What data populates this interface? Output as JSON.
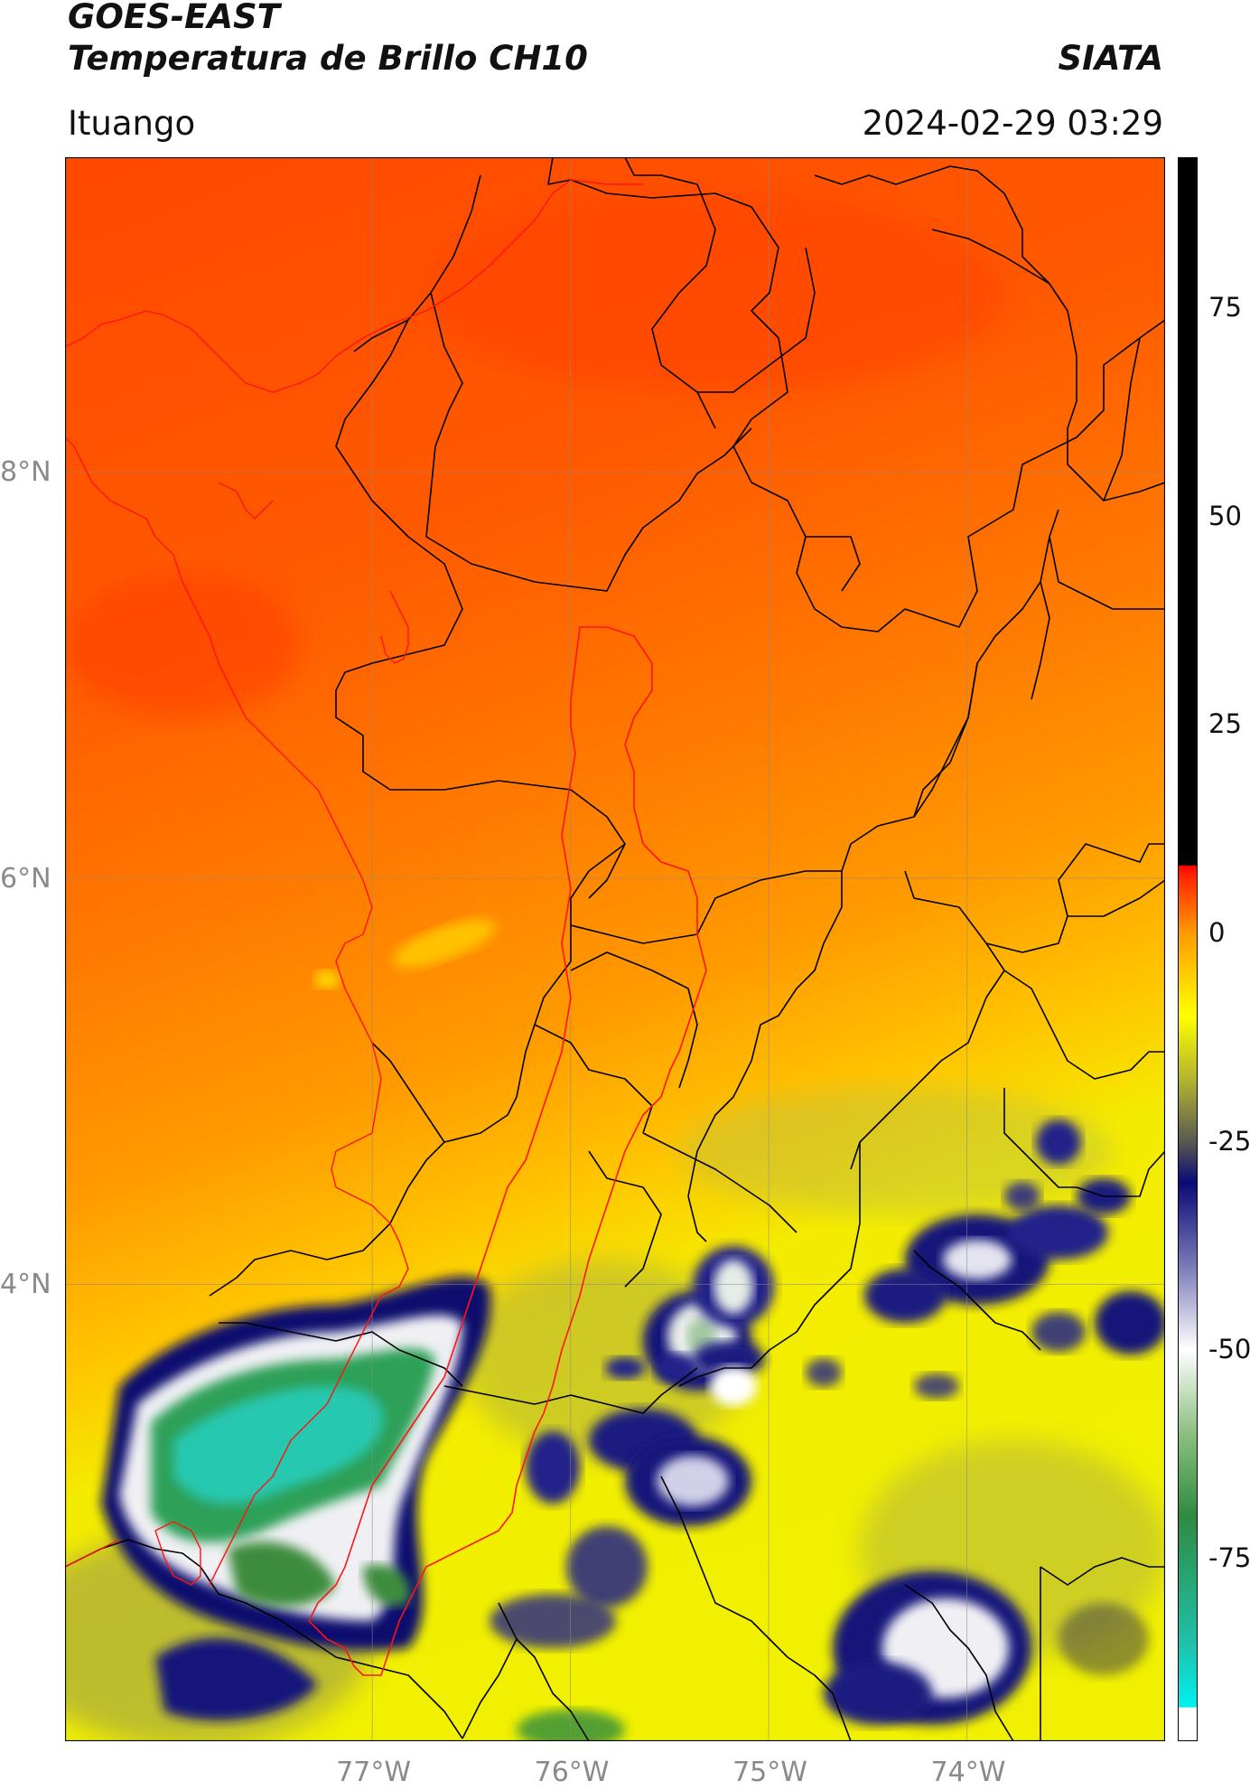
{
  "header": {
    "satellite": "GOES-EAST",
    "product": "Temperatura de Brillo CH10",
    "agency": "SIATA",
    "location": "Ituango",
    "datetime": "2024-02-29 03:29"
  },
  "map": {
    "lat_ticks": [
      "8°N",
      "6°N",
      "4°N"
    ],
    "lon_ticks": [
      "77°W",
      "76°W",
      "75°W",
      "74°W"
    ],
    "lon_range": [
      -78.55,
      -73.0
    ],
    "lat_range": [
      1.75,
      9.55
    ],
    "gridlines": true,
    "colors": {
      "warm": "#ff4a00",
      "orange": "#ff8c00",
      "yellow": "#f2f000",
      "olive": "#9c9c3c",
      "navy": "#0a0a6e",
      "white": "#f4f4f4",
      "green": "#3a8f3a",
      "cyan": "#1fd0b8",
      "boundary": "#000000",
      "basin": "#ff0000"
    }
  },
  "colorbar": {
    "ticks": [
      "75",
      "50",
      "25",
      "0",
      "-25",
      "-50",
      "-75"
    ],
    "tick_values": [
      75,
      50,
      25,
      0,
      -25,
      -50,
      -75
    ],
    "range": [
      -97,
      93
    ],
    "stops": [
      {
        "v": -97,
        "c": "#ffffff"
      },
      {
        "v": -93,
        "c": "#ffffff"
      },
      {
        "v": -92.9,
        "c": "#00f0f0"
      },
      {
        "v": -85,
        "c": "#20c0a8"
      },
      {
        "v": -70,
        "c": "#2e8b40"
      },
      {
        "v": -60,
        "c": "#8cc080"
      },
      {
        "v": -50,
        "c": "#ffffff"
      },
      {
        "v": -40,
        "c": "#7a7ab8"
      },
      {
        "v": -30,
        "c": "#0a0a78"
      },
      {
        "v": -25,
        "c": "#5a5a50"
      },
      {
        "v": -18,
        "c": "#b0b030"
      },
      {
        "v": -10,
        "c": "#ffff00"
      },
      {
        "v": 0,
        "c": "#ff9a00"
      },
      {
        "v": 7,
        "c": "#ff2000"
      },
      {
        "v": 8,
        "c": "#ff0000"
      },
      {
        "v": 8.1,
        "c": "#000000"
      },
      {
        "v": 93,
        "c": "#000000"
      }
    ]
  }
}
